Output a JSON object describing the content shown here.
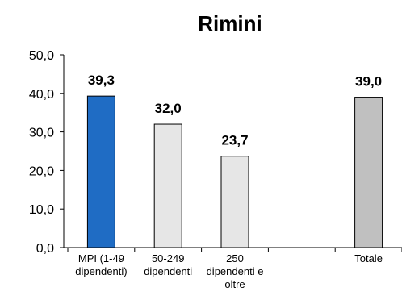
{
  "chart_data": {
    "type": "bar",
    "title": "Rimini",
    "categories": [
      [
        "MPI (1-49",
        "dipendenti)"
      ],
      [
        "50-249",
        "dipendenti"
      ],
      [
        "250",
        "dipendenti e",
        "oltre"
      ],
      [
        ""
      ],
      [
        "Totale"
      ]
    ],
    "values": [
      39.3,
      32.0,
      23.7,
      null,
      39.0
    ],
    "value_labels": [
      "39,3",
      "32,0",
      "23,7",
      "",
      "39,0"
    ],
    "colors": [
      "#1f6cc4",
      "#e6e6e6",
      "#e6e6e6",
      "#ffffff",
      "#c0c0c0"
    ],
    "ylim": [
      0,
      50
    ],
    "yticks": [
      0,
      10,
      20,
      30,
      40,
      50
    ],
    "ytick_labels": [
      "0,0",
      "10,0",
      "20,0",
      "30,0",
      "40,0",
      "50,0"
    ],
    "grid": false,
    "legend": "none"
  }
}
